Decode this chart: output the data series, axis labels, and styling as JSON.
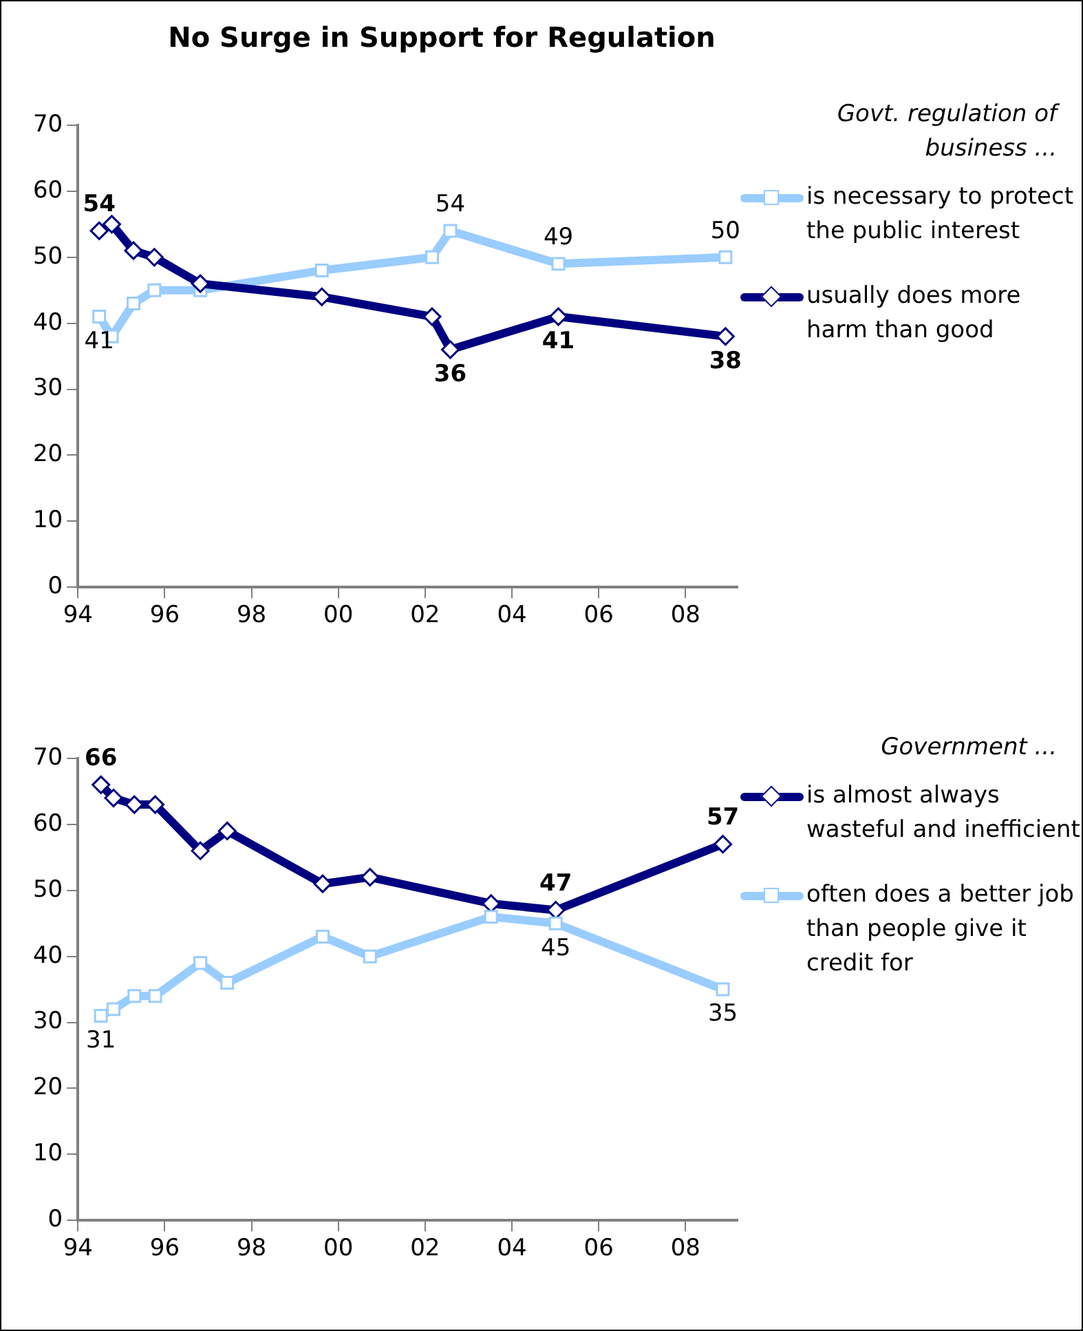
{
  "chart_data": [
    {
      "type": "line",
      "title": "No Surge in Support for Regulation",
      "legend_title": "Govt. regulation of business ...",
      "x": [
        1994.49,
        1994.78,
        1995.28,
        1995.76,
        1996.82,
        1999.62,
        2002.16,
        2002.58,
        2005.07,
        2008.92
      ],
      "series": [
        {
          "name": "is necessary to protect the public interest",
          "color": "#99ccff",
          "marker": "square",
          "values": [
            41,
            38,
            43,
            45,
            45,
            48,
            50,
            54,
            49,
            50
          ],
          "value_labels": [
            "41",
            null,
            null,
            null,
            null,
            null,
            null,
            "54",
            "49",
            "50"
          ]
        },
        {
          "name": "usually does more harm than good",
          "color": "#000080",
          "marker": "diamond",
          "values": [
            54,
            55,
            51,
            50,
            46,
            44,
            41,
            36,
            41,
            38
          ],
          "value_labels": [
            "54",
            null,
            null,
            null,
            null,
            null,
            null,
            "36",
            "41",
            "38"
          ]
        }
      ],
      "xlim": [
        1994,
        2009.2
      ],
      "xticks": [
        {
          "value": 1994,
          "label": "94"
        },
        {
          "value": 1996,
          "label": "96"
        },
        {
          "value": 1998,
          "label": "98"
        },
        {
          "value": 2000,
          "label": "00"
        },
        {
          "value": 2002,
          "label": "02"
        },
        {
          "value": 2004,
          "label": "04"
        },
        {
          "value": 2006,
          "label": "06"
        },
        {
          "value": 2008,
          "label": "08"
        }
      ],
      "ylim": [
        0,
        70
      ],
      "yticks": [
        0,
        10,
        20,
        30,
        40,
        50,
        60,
        70
      ],
      "grid": false,
      "legend": "right"
    },
    {
      "type": "line",
      "legend_title": "Government ...",
      "x": [
        1994.53,
        1994.82,
        1995.3,
        1995.78,
        1996.82,
        1997.44,
        1999.64,
        2000.73,
        2003.52,
        2005.01,
        2008.86
      ],
      "series": [
        {
          "name": "is almost always wasteful and inefficient",
          "color": "#000080",
          "marker": "diamond",
          "values": [
            66,
            64,
            63,
            63,
            56,
            59,
            51,
            52,
            48,
            47,
            57
          ],
          "value_labels": [
            "66",
            null,
            null,
            null,
            null,
            null,
            null,
            null,
            null,
            "47",
            "57"
          ]
        },
        {
          "name": "often does a better job than people give it credit for",
          "color": "#99ccff",
          "marker": "square",
          "values": [
            31,
            32,
            34,
            34,
            39,
            36,
            43,
            40,
            46,
            45,
            35
          ],
          "value_labels": [
            "31",
            null,
            null,
            null,
            null,
            null,
            null,
            null,
            null,
            "45",
            "35"
          ]
        }
      ],
      "xlim": [
        1994,
        2009.2
      ],
      "xticks": [
        {
          "value": 1994,
          "label": "94"
        },
        {
          "value": 1996,
          "label": "96"
        },
        {
          "value": 1998,
          "label": "98"
        },
        {
          "value": 2000,
          "label": "00"
        },
        {
          "value": 2002,
          "label": "02"
        },
        {
          "value": 2004,
          "label": "04"
        },
        {
          "value": 2006,
          "label": "06"
        },
        {
          "value": 2008,
          "label": "08"
        }
      ],
      "ylim": [
        0,
        70
      ],
      "yticks": [
        0,
        10,
        20,
        30,
        40,
        50,
        60,
        70
      ],
      "grid": false,
      "legend": "right"
    }
  ]
}
